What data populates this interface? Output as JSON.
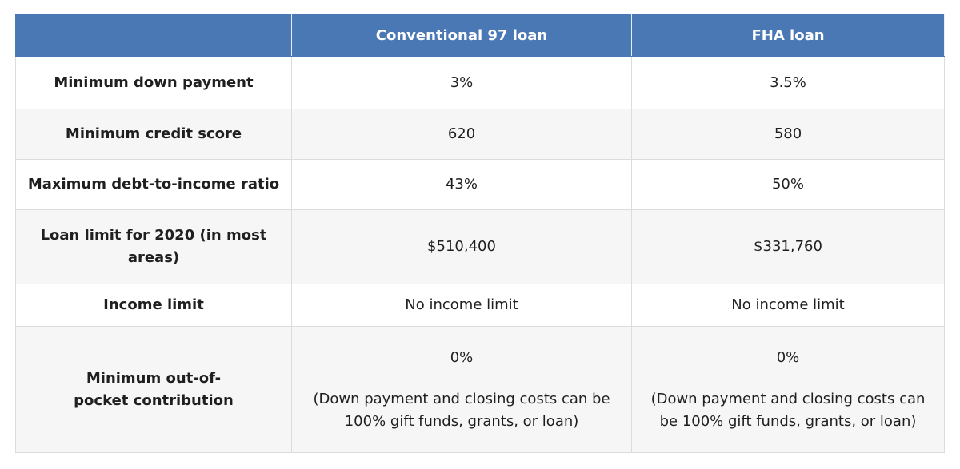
{
  "table": {
    "header": [
      "Conventional 97 loan",
      "FHA loan"
    ],
    "rows": [
      {
        "label": "Minimum down payment",
        "cells": [
          "3%",
          "3.5%"
        ]
      },
      {
        "label": "Minimum credit score",
        "cells": [
          "620",
          "580"
        ]
      },
      {
        "label": "Maximum debt-to-income ratio",
        "cells": [
          "43%",
          "50%"
        ]
      },
      {
        "label": "Loan limit for 2020 (in most areas)",
        "cells": [
          "$510,400",
          "$331,760"
        ]
      },
      {
        "label": "Income limit",
        "cells": [
          "No income limit",
          "No income limit"
        ]
      },
      {
        "label": "Minimum out-of-pocket contribution",
        "cells": [
          [
            "0%",
            "(Down payment and closing costs can be 100% gift funds, grants, or loan)"
          ],
          [
            "0%",
            "(Down payment and closing costs can be 100% gift funds, grants, or loan)"
          ]
        ]
      }
    ]
  }
}
